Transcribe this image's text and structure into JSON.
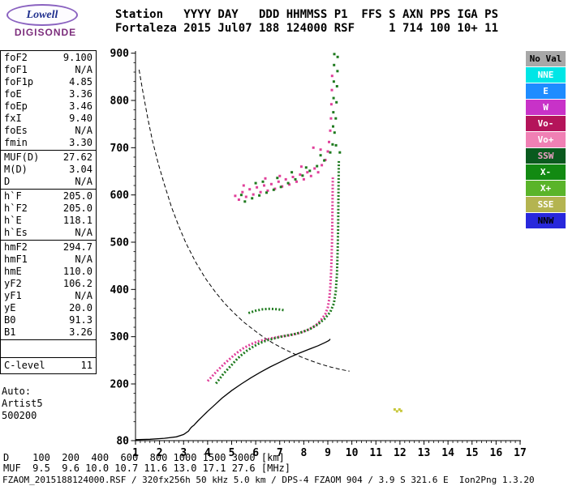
{
  "logo": {
    "brand": "Lowell",
    "product": "DIGISONDE"
  },
  "header": {
    "fields": [
      {
        "label": "Station",
        "value": "Fortaleza"
      },
      {
        "label": "YYYY",
        "value": "2015"
      },
      {
        "label": "DAY",
        "value": "Jul07"
      },
      {
        "label": "DDD",
        "value": "188"
      },
      {
        "label": "HHMMSS",
        "value": "124000"
      },
      {
        "label": "P1",
        "value": "RSF"
      },
      {
        "label": "FFS",
        "value": ""
      },
      {
        "label": "S",
        "value": "1"
      },
      {
        "label": "AXN",
        "value": "714"
      },
      {
        "label": "PPS",
        "value": "100"
      },
      {
        "label": "IGA",
        "value": "10+"
      },
      {
        "label": "PS",
        "value": "11"
      }
    ]
  },
  "params": {
    "groups": [
      [
        [
          "foF2",
          "9.100"
        ],
        [
          "foF1",
          "N/A"
        ],
        [
          "foF1p",
          "4.85"
        ],
        [
          "foE",
          "3.36"
        ],
        [
          "foEp",
          "3.46"
        ],
        [
          "fxI",
          "9.40"
        ],
        [
          "foEs",
          "N/A"
        ],
        [
          "fmin",
          "3.30"
        ]
      ],
      [
        [
          "MUF(D)",
          "27.62"
        ],
        [
          "M(D)",
          "3.04"
        ],
        [
          "D",
          "N/A"
        ]
      ],
      [
        [
          "h`F",
          "205.0"
        ],
        [
          "h`F2",
          "205.0"
        ],
        [
          "h`E",
          "118.1"
        ],
        [
          "h`Es",
          "N/A"
        ]
      ],
      [
        [
          "hmF2",
          "294.7"
        ],
        [
          "hmF1",
          "N/A"
        ],
        [
          "hmE",
          "110.0"
        ],
        [
          "yF2",
          "106.2"
        ],
        [
          "yF1",
          "N/A"
        ],
        [
          "yE",
          "20.0"
        ],
        [
          "B0",
          "91.3"
        ],
        [
          "B1",
          "3.26"
        ]
      ]
    ],
    "clevel": [
      "C-level",
      "11"
    ],
    "footer": [
      "Auto:",
      "Artist5",
      "500200"
    ]
  },
  "legend": [
    {
      "label": "No Val",
      "bg": "#a8a8a8",
      "fg": "#000000"
    },
    {
      "label": "NNE",
      "bg": "#00e6e6",
      "fg": "#ffffff"
    },
    {
      "label": "E",
      "bg": "#1e8cff",
      "fg": "#ffffff"
    },
    {
      "label": "W",
      "bg": "#c832c8",
      "fg": "#ffffff"
    },
    {
      "label": "Vo-",
      "bg": "#b4145a",
      "fg": "#ffffff"
    },
    {
      "label": "Vo+",
      "bg": "#f080b4",
      "fg": "#ffffff"
    },
    {
      "label": "SSW",
      "bg": "#0a5a1e",
      "fg": "#f0a0c8"
    },
    {
      "label": "X-",
      "bg": "#128a12",
      "fg": "#ffffff"
    },
    {
      "label": "X+",
      "bg": "#5ab42a",
      "fg": "#ffffff"
    },
    {
      "label": "SSE",
      "bg": "#b4b450",
      "fg": "#ffffff"
    },
    {
      "label": "NNW",
      "bg": "#2828dc",
      "fg": "#000000"
    }
  ],
  "footer": {
    "d_row": {
      "label": "D",
      "values": [
        "100",
        "200",
        "400",
        "600",
        "800",
        "1000",
        "1500",
        "3000"
      ],
      "unit": "[km]"
    },
    "muf_row": {
      "label": "MUF",
      "values": [
        "9.5",
        "9.6",
        "10.0",
        "10.7",
        "11.6",
        "13.0",
        "17.1",
        "27.6"
      ],
      "unit": "[MHz]"
    },
    "file_line": "FZAOM_2015188124000.RSF / 320fx256h 50 kHz 5.0 km / DPS-4 FZAOM 904 / 3.9 S 321.6 E  Ion2Png 1.3.20"
  },
  "chart_data": {
    "type": "scatter",
    "title": "Fortaleza ionogram 2015 Jul07 188 124000",
    "xlim": [
      1,
      17
    ],
    "ylim": [
      80,
      900
    ],
    "x_unit": "MHz",
    "y_unit": "km",
    "grid": false,
    "x_ticks": [
      1,
      2,
      3,
      4,
      5,
      6,
      7,
      8,
      9,
      10,
      11,
      12,
      13,
      14,
      15,
      16,
      17
    ],
    "y_ticks": [
      900,
      800,
      700,
      600,
      500,
      400,
      300,
      200,
      80
    ],
    "series": [
      {
        "name": "F2 O-mode trace (Vo+)",
        "color": "#e0409a",
        "render": "dotline",
        "points": [
          [
            4.0,
            206
          ],
          [
            4.1,
            211
          ],
          [
            4.2,
            217
          ],
          [
            4.35,
            225
          ],
          [
            4.5,
            233
          ],
          [
            4.7,
            243
          ],
          [
            4.9,
            252
          ],
          [
            5.1,
            261
          ],
          [
            5.3,
            269
          ],
          [
            5.5,
            276
          ],
          [
            5.8,
            284
          ],
          [
            6.1,
            290
          ],
          [
            6.4,
            294
          ],
          [
            6.7,
            297
          ],
          [
            7.0,
            300
          ],
          [
            7.3,
            302
          ],
          [
            7.6,
            305
          ],
          [
            7.9,
            309
          ],
          [
            8.2,
            315
          ],
          [
            8.5,
            324
          ],
          [
            8.7,
            334
          ],
          [
            8.9,
            348
          ],
          [
            9.0,
            362
          ],
          [
            9.06,
            380
          ],
          [
            9.1,
            404
          ],
          [
            9.13,
            432
          ],
          [
            9.16,
            468
          ],
          [
            9.18,
            510
          ],
          [
            9.19,
            555
          ],
          [
            9.2,
            600
          ],
          [
            9.21,
            640
          ]
        ]
      },
      {
        "name": "F2 X-mode trace",
        "color": "#1e7a1e",
        "render": "dotline",
        "points": [
          [
            4.35,
            201
          ],
          [
            4.5,
            211
          ],
          [
            4.65,
            221
          ],
          [
            4.85,
            232
          ],
          [
            5.05,
            243
          ],
          [
            5.25,
            254
          ],
          [
            5.45,
            263
          ],
          [
            5.65,
            271
          ],
          [
            5.9,
            279
          ],
          [
            6.15,
            286
          ],
          [
            6.45,
            292
          ],
          [
            6.75,
            296
          ],
          [
            7.05,
            300
          ],
          [
            7.35,
            303
          ],
          [
            7.65,
            306
          ],
          [
            7.95,
            310
          ],
          [
            8.25,
            316
          ],
          [
            8.55,
            325
          ],
          [
            8.85,
            337
          ],
          [
            9.1,
            352
          ],
          [
            9.25,
            370
          ],
          [
            9.33,
            396
          ],
          [
            9.38,
            434
          ],
          [
            9.41,
            480
          ],
          [
            9.43,
            530
          ],
          [
            9.44,
            580
          ],
          [
            9.45,
            630
          ],
          [
            9.46,
            675
          ]
        ]
      },
      {
        "name": "X-mode upper segment",
        "color": "#1e7a1e",
        "render": "dotline",
        "points": [
          [
            5.7,
            350
          ],
          [
            6.0,
            355
          ],
          [
            6.3,
            358
          ],
          [
            6.6,
            359
          ],
          [
            6.9,
            358
          ],
          [
            7.2,
            356
          ]
        ]
      },
      {
        "name": "Second hop O-mode",
        "color": "#e0409a",
        "render": "dots",
        "points": [
          [
            5.15,
            598
          ],
          [
            5.3,
            590
          ],
          [
            5.45,
            606
          ],
          [
            5.6,
            596
          ],
          [
            5.75,
            612
          ],
          [
            5.9,
            601
          ],
          [
            6.05,
            616
          ],
          [
            6.2,
            606
          ],
          [
            6.35,
            620
          ],
          [
            6.5,
            609
          ],
          [
            6.65,
            623
          ],
          [
            6.8,
            613
          ],
          [
            6.95,
            628
          ],
          [
            7.1,
            618
          ],
          [
            7.25,
            633
          ],
          [
            7.4,
            622
          ],
          [
            7.55,
            638
          ],
          [
            7.7,
            628
          ],
          [
            7.85,
            643
          ],
          [
            8.0,
            633
          ],
          [
            8.15,
            648
          ],
          [
            8.3,
            640
          ],
          [
            8.45,
            656
          ],
          [
            8.6,
            648
          ],
          [
            8.75,
            663
          ],
          [
            8.9,
            674
          ],
          [
            9.0,
            692
          ],
          [
            9.05,
            712
          ],
          [
            9.1,
            736
          ],
          [
            9.13,
            762
          ],
          [
            9.15,
            792
          ],
          [
            9.17,
            822
          ],
          [
            9.18,
            852
          ],
          [
            8.4,
            700
          ],
          [
            8.7,
            696
          ],
          [
            7.9,
            660
          ],
          [
            7.0,
            640
          ],
          [
            6.4,
            635
          ],
          [
            5.5,
            620
          ]
        ]
      },
      {
        "name": "Second hop X-mode",
        "color": "#1e7a1e",
        "render": "dots",
        "points": [
          [
            5.55,
            586
          ],
          [
            5.85,
            593
          ],
          [
            6.15,
            599
          ],
          [
            6.45,
            605
          ],
          [
            6.75,
            611
          ],
          [
            7.05,
            617
          ],
          [
            7.35,
            625
          ],
          [
            7.65,
            633
          ],
          [
            7.95,
            641
          ],
          [
            8.25,
            651
          ],
          [
            8.55,
            661
          ],
          [
            8.85,
            673
          ],
          [
            9.1,
            690
          ],
          [
            9.2,
            707
          ],
          [
            9.28,
            732
          ],
          [
            9.33,
            762
          ],
          [
            9.36,
            796
          ],
          [
            9.38,
            830
          ],
          [
            9.4,
            862
          ],
          [
            9.41,
            892
          ],
          [
            6.3,
            628
          ],
          [
            6.9,
            636
          ],
          [
            7.5,
            648
          ],
          [
            8.1,
            658
          ],
          [
            8.7,
            684
          ],
          [
            9.34,
            705
          ],
          [
            9.5,
            690
          ],
          [
            6.0,
            625
          ],
          [
            5.4,
            600
          ],
          [
            9.22,
            745
          ],
          [
            9.23,
            775
          ],
          [
            9.24,
            805
          ],
          [
            9.25,
            840
          ],
          [
            9.26,
            875
          ],
          [
            9.27,
            898
          ]
        ]
      },
      {
        "name": "Sporadic echoes (SSE)",
        "color": "#c8c83c",
        "render": "dots",
        "points": [
          [
            11.78,
            146
          ],
          [
            11.88,
            142
          ],
          [
            11.98,
            146
          ],
          [
            12.05,
            143
          ]
        ]
      }
    ],
    "lines": [
      {
        "name": "muf-transmission-curve",
        "color": "#000000",
        "width": 1,
        "dash": "5 3",
        "points": [
          [
            1.15,
            865
          ],
          [
            1.3,
            820
          ],
          [
            1.5,
            765
          ],
          [
            1.7,
            716
          ],
          [
            1.95,
            666
          ],
          [
            2.2,
            622
          ],
          [
            2.5,
            574
          ],
          [
            2.8,
            534
          ],
          [
            3.1,
            498
          ],
          [
            3.5,
            458
          ],
          [
            3.9,
            424
          ],
          [
            4.3,
            396
          ],
          [
            4.7,
            371
          ],
          [
            5.1,
            350
          ],
          [
            5.5,
            331
          ],
          [
            5.9,
            315
          ],
          [
            6.3,
            300
          ],
          [
            6.7,
            287
          ],
          [
            7.1,
            276
          ],
          [
            7.5,
            266
          ],
          [
            7.9,
            257
          ],
          [
            8.3,
            249
          ],
          [
            8.7,
            242
          ],
          [
            9.1,
            236
          ],
          [
            9.5,
            231
          ],
          [
            9.9,
            227
          ]
        ]
      },
      {
        "name": "true-height-profile",
        "color": "#000000",
        "width": 1.3,
        "dash": "",
        "points": [
          [
            1.0,
            82
          ],
          [
            1.6,
            83
          ],
          [
            2.2,
            85
          ],
          [
            2.7,
            88
          ],
          [
            3.0,
            93
          ],
          [
            3.2,
            100
          ],
          [
            3.3,
            107
          ],
          [
            3.36,
            110
          ],
          [
            3.42,
            112
          ],
          [
            3.6,
            122
          ],
          [
            3.8,
            132
          ],
          [
            4.0,
            142
          ],
          [
            4.3,
            156
          ],
          [
            4.6,
            170
          ],
          [
            5.0,
            186
          ],
          [
            5.4,
            200
          ],
          [
            5.8,
            213
          ],
          [
            6.2,
            225
          ],
          [
            6.6,
            236
          ],
          [
            7.0,
            246
          ],
          [
            7.4,
            256
          ],
          [
            7.8,
            265
          ],
          [
            8.2,
            273
          ],
          [
            8.6,
            281
          ],
          [
            8.9,
            288
          ],
          [
            9.05,
            292
          ],
          [
            9.1,
            295
          ]
        ]
      }
    ]
  }
}
